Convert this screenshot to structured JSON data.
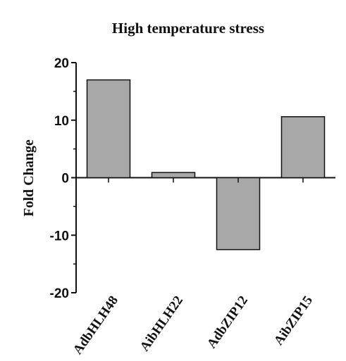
{
  "chart_data": {
    "type": "bar",
    "title": "High temperature stress",
    "xlabel": "",
    "ylabel": "Fold Change",
    "categories": [
      "AdbHLH48",
      "AibHLH22",
      "AdbZIP12",
      "AibZIP15"
    ],
    "values": [
      17.0,
      0.9,
      -12.5,
      10.6
    ],
    "ylim": [
      -20,
      20
    ],
    "yticks": [
      20,
      10,
      0,
      -10,
      -20
    ],
    "bar_color": "#a8a8a8",
    "bar_edge_color": "#111111",
    "grid": false,
    "legend": "none"
  }
}
